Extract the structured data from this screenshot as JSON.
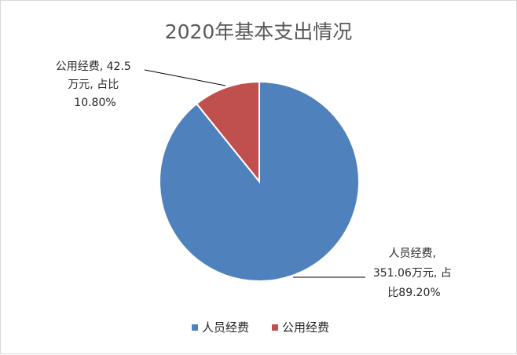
{
  "chart_data": {
    "type": "pie",
    "title": "2020年基本支出情况",
    "unit": "万元",
    "series": [
      {
        "name": "人员经费",
        "value": 351.06,
        "percent": "89.20%",
        "color": "#4f81bd",
        "label_lines": [
          "人员经费,",
          "351.06万元, 占",
          "比89.20%"
        ]
      },
      {
        "name": "公用经费",
        "value": 42.5,
        "percent": "10.80%",
        "color": "#c0504d",
        "label_lines": [
          "公用经费, 42.5",
          "万元, 占比",
          "10.80%"
        ]
      }
    ],
    "legend": {
      "position": "bottom",
      "items": [
        "人员经费",
        "公用经费"
      ]
    }
  }
}
